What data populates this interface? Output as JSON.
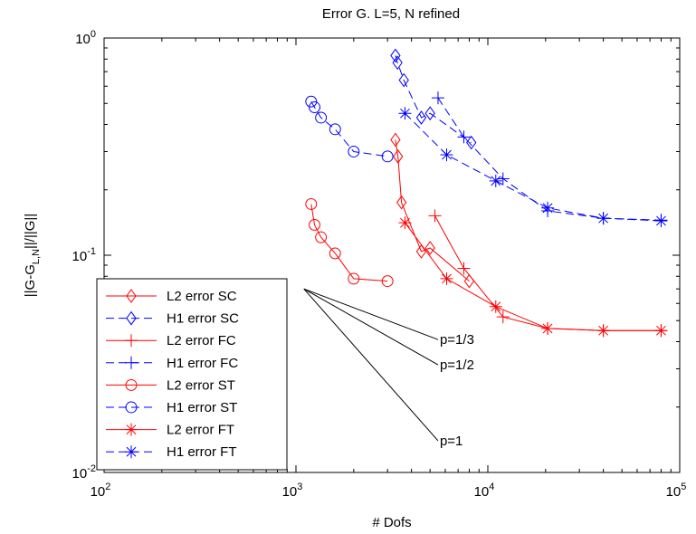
{
  "chart_data": {
    "type": "line",
    "title": "Error G. L=5, N refined",
    "xlabel": "# Dofs",
    "ylabel": "||G-G_{L,N}||/||G||",
    "xscale": "log",
    "yscale": "log",
    "xlim": [
      100,
      100000
    ],
    "ylim": [
      0.01,
      1
    ],
    "x_ticks": [
      {
        "value": 100,
        "base": "10",
        "exp": "2"
      },
      {
        "value": 1000,
        "base": "10",
        "exp": "3"
      },
      {
        "value": 10000,
        "base": "10",
        "exp": "4"
      },
      {
        "value": 100000,
        "base": "10",
        "exp": "5"
      }
    ],
    "y_ticks": [
      {
        "value": 0.01,
        "base": "10",
        "exp": "-2"
      },
      {
        "value": 0.1,
        "base": "10",
        "exp": "-1"
      },
      {
        "value": 1,
        "base": "10",
        "exp": "0"
      }
    ],
    "grid": false,
    "legend_position": "bottom-left",
    "series": [
      {
        "name": "L2 error SC",
        "color": "#ff0000",
        "dash": "solid",
        "marker": "diamond",
        "x": [
          3300,
          3400,
          3550,
          4500,
          5000,
          8000
        ],
        "y": [
          0.34,
          0.285,
          0.175,
          0.104,
          0.108,
          0.076
        ]
      },
      {
        "name": "H1 error SC",
        "color": "#0000ff",
        "dash": "dashed",
        "marker": "diamond",
        "x": [
          3300,
          3380,
          3650,
          4500,
          5000,
          8200
        ],
        "y": [
          0.83,
          0.77,
          0.64,
          0.43,
          0.45,
          0.33
        ]
      },
      {
        "name": "L2 error FC",
        "color": "#ff0000",
        "dash": "solid",
        "marker": "plus",
        "x": [
          5300,
          7500,
          12000,
          20500,
          40000,
          80000
        ],
        "y": [
          0.152,
          0.087,
          0.052,
          0.046,
          0.045,
          0.045
        ]
      },
      {
        "name": "H1 error FC",
        "color": "#0000ff",
        "dash": "dashed",
        "marker": "plus",
        "x": [
          5500,
          7500,
          12000,
          20500,
          40000,
          80000
        ],
        "y": [
          0.53,
          0.35,
          0.225,
          0.16,
          0.148,
          0.145
        ]
      },
      {
        "name": "L2 error ST",
        "color": "#ff0000",
        "dash": "solid",
        "marker": "circle",
        "x": [
          1200,
          1250,
          1350,
          1600,
          2000,
          3000
        ],
        "y": [
          0.172,
          0.138,
          0.121,
          0.102,
          0.078,
          0.076
        ]
      },
      {
        "name": "H1 error ST",
        "color": "#0000ff",
        "dash": "dashed",
        "marker": "circle",
        "x": [
          1200,
          1250,
          1350,
          1600,
          2000,
          3000
        ],
        "y": [
          0.51,
          0.48,
          0.43,
          0.38,
          0.3,
          0.285
        ]
      },
      {
        "name": "L2 error FT",
        "color": "#ff0000",
        "dash": "solid",
        "marker": "star",
        "x": [
          3700,
          6100,
          11000,
          20500,
          40000,
          80000
        ],
        "y": [
          0.141,
          0.078,
          0.058,
          0.046,
          0.045,
          0.045
        ]
      },
      {
        "name": "H1 error FT",
        "color": "#0000ff",
        "dash": "dashed",
        "marker": "star",
        "x": [
          3700,
          6100,
          11000,
          20500,
          40000,
          80000
        ],
        "y": [
          0.45,
          0.29,
          0.22,
          0.165,
          0.148,
          0.144
        ]
      }
    ],
    "reference_lines": [
      {
        "label": "p=1/3",
        "x": [
          1100,
          5500
        ],
        "y": [
          0.07,
          0.0409
        ]
      },
      {
        "label": "p=1/2",
        "x": [
          1100,
          5500
        ],
        "y": [
          0.07,
          0.0313
        ]
      },
      {
        "label": "p=1",
        "x": [
          1100,
          5500
        ],
        "y": [
          0.07,
          0.014
        ]
      }
    ]
  }
}
